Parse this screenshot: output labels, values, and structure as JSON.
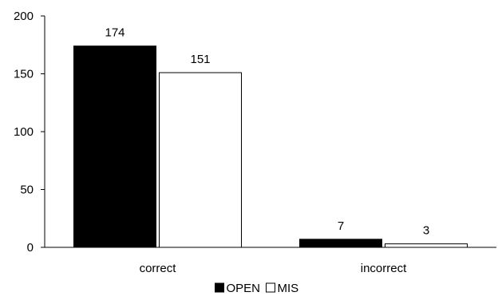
{
  "chart_data": {
    "type": "bar",
    "title": "",
    "xlabel": "",
    "ylabel": "",
    "categories": [
      "correct",
      "incorrect"
    ],
    "series": [
      {
        "name": "OPEN",
        "values": [
          174,
          7
        ],
        "color": "#000000"
      },
      {
        "name": "MIS",
        "values": [
          151,
          3
        ],
        "color": "#ffffff"
      }
    ],
    "ylim": [
      0,
      200
    ],
    "yticks": [
      "0",
      "50",
      "100",
      "150",
      "200"
    ],
    "grid": false,
    "legend": "bottom-center",
    "data_labels": true
  }
}
